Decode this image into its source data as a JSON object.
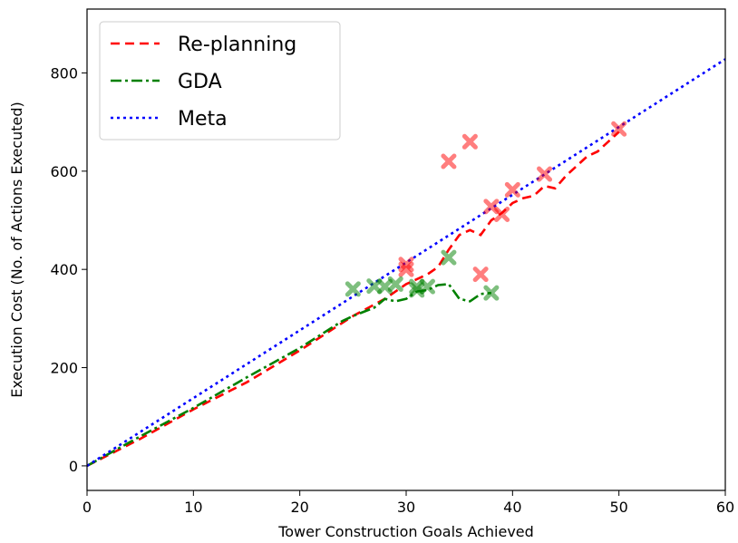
{
  "chart_data": {
    "type": "line",
    "title": "",
    "xlabel": "Tower Construction Goals Achieved",
    "ylabel": "Execution Cost (No. of Actions Executed)",
    "xlim": [
      0,
      60
    ],
    "ylim": [
      -50,
      930
    ],
    "xticks": [
      0,
      10,
      20,
      30,
      40,
      50,
      60
    ],
    "yticks": [
      0,
      200,
      400,
      600,
      800
    ],
    "grid": false,
    "legend_position": "top-left",
    "series": [
      {
        "name": "Re-planning",
        "color": "#ff0000",
        "style": "dashed",
        "x": [
          0,
          5,
          10,
          15,
          20,
          25,
          28,
          30,
          32,
          33,
          34,
          35,
          36,
          37,
          38,
          39,
          40,
          41,
          42,
          43,
          44,
          45,
          46,
          47,
          48,
          49,
          50
        ],
        "y": [
          0,
          55,
          115,
          170,
          235,
          305,
          340,
          370,
          390,
          405,
          440,
          470,
          480,
          470,
          500,
          515,
          535,
          545,
          550,
          570,
          565,
          590,
          610,
          630,
          640,
          660,
          680
        ]
      },
      {
        "name": "GDA",
        "color": "#008000",
        "style": "dashdot",
        "x": [
          0,
          5,
          10,
          15,
          20,
          24,
          25,
          27,
          28,
          29,
          30,
          31,
          32,
          33,
          34,
          35,
          36,
          37,
          38
        ],
        "y": [
          0,
          60,
          118,
          180,
          240,
          295,
          305,
          322,
          340,
          335,
          340,
          355,
          358,
          368,
          370,
          340,
          335,
          350,
          352
        ]
      },
      {
        "name": "Meta",
        "color": "#0000ff",
        "style": "dotted",
        "x": [
          0,
          60
        ],
        "y": [
          0,
          828
        ]
      }
    ],
    "markers": [
      {
        "series": "Re-planning",
        "color": "#ff0000",
        "shape": "x",
        "points": [
          [
            30,
            410
          ],
          [
            30,
            400
          ],
          [
            34,
            620
          ],
          [
            36,
            660
          ],
          [
            37,
            390
          ],
          [
            38,
            528
          ],
          [
            39,
            512
          ],
          [
            40,
            562
          ],
          [
            43,
            594
          ],
          [
            50,
            686
          ]
        ]
      },
      {
        "series": "GDA",
        "color": "#008000",
        "shape": "x",
        "points": [
          [
            25,
            360
          ],
          [
            27,
            366
          ],
          [
            28,
            365
          ],
          [
            29,
            370
          ],
          [
            31,
            358
          ],
          [
            31,
            365
          ],
          [
            32,
            365
          ],
          [
            34,
            424
          ],
          [
            38,
            352
          ]
        ]
      }
    ]
  }
}
